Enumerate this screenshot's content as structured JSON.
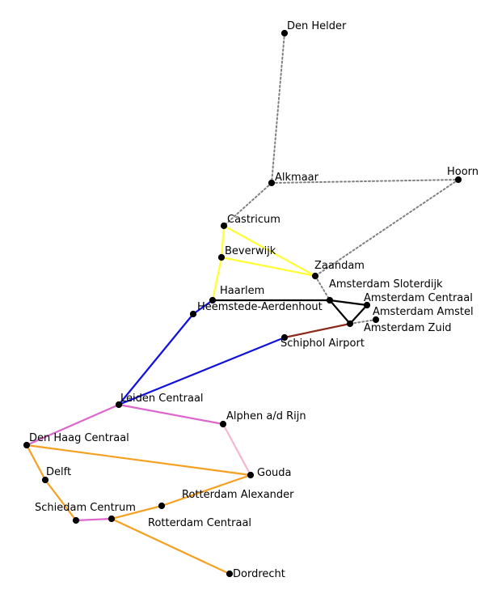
{
  "colors": {
    "dotted": "#808080",
    "yellow": "#ffff33",
    "black": "#000000",
    "blue": "#1111dd",
    "magenta": "#dd66cc",
    "pink": "#f4b6c8",
    "orange": "#f5a020",
    "brown": "#8b2a1a",
    "node": "#000000"
  },
  "stations": [
    {
      "id": "den-helder",
      "name": "Den Helder"
    },
    {
      "id": "alkmaar",
      "name": "Alkmaar"
    },
    {
      "id": "hoorn",
      "name": "Hoorn"
    },
    {
      "id": "castricum",
      "name": "Castricum"
    },
    {
      "id": "beverwijk",
      "name": "Beverwijk"
    },
    {
      "id": "zaandam",
      "name": "Zaandam"
    },
    {
      "id": "haarlem",
      "name": "Haarlem"
    },
    {
      "id": "heemstede",
      "name": "Heemstede-Aerdenhout"
    },
    {
      "id": "sloterdijk",
      "name": "Amsterdam Sloterdijk"
    },
    {
      "id": "centraal",
      "name": "Amsterdam Centraal"
    },
    {
      "id": "amstel",
      "name": "Amsterdam Amstel"
    },
    {
      "id": "zuid",
      "name": "Amsterdam Zuid"
    },
    {
      "id": "schiphol",
      "name": "Schiphol Airport"
    },
    {
      "id": "leiden",
      "name": "Leiden Centraal"
    },
    {
      "id": "alphen",
      "name": "Alphen a/d Rijn"
    },
    {
      "id": "denhaag",
      "name": "Den Haag Centraal"
    },
    {
      "id": "gouda",
      "name": "Gouda"
    },
    {
      "id": "delft",
      "name": "Delft"
    },
    {
      "id": "rtd-alexander",
      "name": "Rotterdam Alexander"
    },
    {
      "id": "schiedam",
      "name": "Schiedam Centrum"
    },
    {
      "id": "rtd-centraal",
      "name": "Rotterdam Centraal"
    },
    {
      "id": "dordrecht",
      "name": "Dordrecht"
    }
  ],
  "connections": [
    {
      "from": "den-helder",
      "to": "alkmaar",
      "line": "dotted"
    },
    {
      "from": "alkmaar",
      "to": "hoorn",
      "line": "dotted"
    },
    {
      "from": "alkmaar",
      "to": "castricum",
      "line": "dotted"
    },
    {
      "from": "hoorn",
      "to": "zaandam",
      "line": "dotted"
    },
    {
      "from": "zaandam",
      "to": "sloterdijk",
      "line": "dotted"
    },
    {
      "from": "amstel",
      "to": "zuid",
      "line": "dotted"
    },
    {
      "from": "castricum",
      "to": "beverwijk",
      "line": "yellow"
    },
    {
      "from": "castricum",
      "to": "zaandam",
      "line": "yellow"
    },
    {
      "from": "beverwijk",
      "to": "zaandam",
      "line": "yellow"
    },
    {
      "from": "beverwijk",
      "to": "haarlem",
      "line": "yellow"
    },
    {
      "from": "haarlem",
      "to": "sloterdijk",
      "line": "black"
    },
    {
      "from": "sloterdijk",
      "to": "centraal",
      "line": "black"
    },
    {
      "from": "sloterdijk",
      "to": "zuid",
      "line": "black"
    },
    {
      "from": "centraal",
      "to": "zuid",
      "line": "black"
    },
    {
      "from": "zuid",
      "to": "schiphol",
      "line": "brown"
    },
    {
      "from": "haarlem",
      "to": "heemstede",
      "line": "blue"
    },
    {
      "from": "heemstede",
      "to": "leiden",
      "line": "blue"
    },
    {
      "from": "schiphol",
      "to": "leiden",
      "line": "blue"
    },
    {
      "from": "leiden",
      "to": "denhaag",
      "line": "magenta"
    },
    {
      "from": "leiden",
      "to": "alphen",
      "line": "magenta"
    },
    {
      "from": "alphen",
      "to": "gouda",
      "line": "pink"
    },
    {
      "from": "denhaag",
      "to": "gouda",
      "line": "orange"
    },
    {
      "from": "denhaag",
      "to": "delft",
      "line": "orange"
    },
    {
      "from": "delft",
      "to": "schiedam",
      "line": "orange"
    },
    {
      "from": "schiedam",
      "to": "rtd-centraal",
      "line": "magenta"
    },
    {
      "from": "gouda",
      "to": "rtd-alexander",
      "line": "orange"
    },
    {
      "from": "rtd-alexander",
      "to": "rtd-centraal",
      "line": "orange"
    },
    {
      "from": "rtd-centraal",
      "to": "dordrecht",
      "line": "orange"
    }
  ]
}
